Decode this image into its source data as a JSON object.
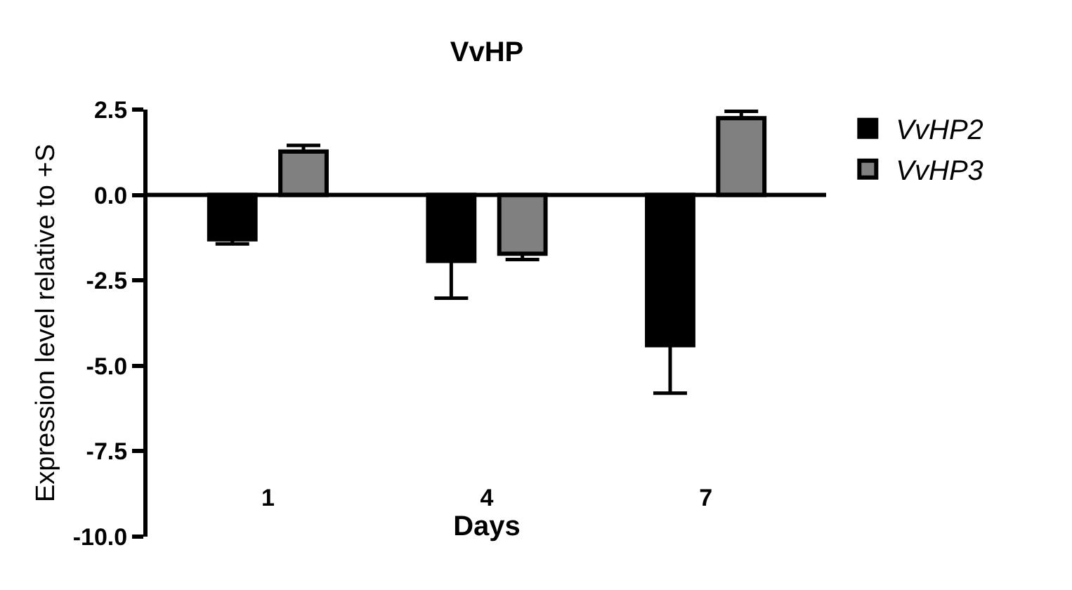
{
  "chart_data": {
    "type": "bar",
    "title": "VvHP",
    "xlabel": "Days",
    "ylabel": "Expression level relative to +S",
    "categories": [
      "1",
      "4",
      "7"
    ],
    "series": [
      {
        "name": "VvHP2",
        "color": "#000000",
        "values": [
          -1.3,
          -1.93,
          -4.4
        ],
        "errors": [
          [
            -1.43,
            -1.3
          ],
          [
            -3.02,
            -1.93
          ],
          [
            -5.8,
            -4.4
          ]
        ]
      },
      {
        "name": "VvHP3",
        "color": "#808080",
        "values": [
          1.27,
          -1.72,
          2.25
        ],
        "errors": [
          [
            1.27,
            1.45
          ],
          [
            -1.89,
            -1.72
          ],
          [
            2.25,
            2.45
          ]
        ]
      }
    ],
    "ylim": [
      -10,
      2.5
    ],
    "yticks": [
      2.5,
      {
        "value": 0,
        "label": "0.0"
      },
      -2.5,
      {
        "value": -5,
        "label": "-5.0"
      },
      -7.5,
      {
        "value": -10,
        "label": "-10.0"
      }
    ],
    "ref_lines": [
      {
        "axis": "y",
        "value": 0,
        "color": "#000000"
      }
    ],
    "legend": "top right"
  }
}
